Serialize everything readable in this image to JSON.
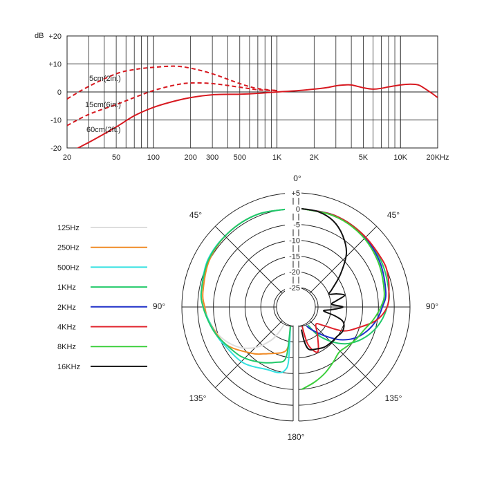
{
  "chart_data": [
    {
      "type": "line",
      "ylabel": "dB",
      "xscale": "log",
      "xlim": [
        20,
        20000
      ],
      "ylim": [
        -20,
        20
      ],
      "grid": true,
      "x_tick_labels": [
        "20",
        "50",
        "100",
        "200",
        "300",
        "500",
        "1K",
        "2K",
        "5K",
        "10K",
        "20KHz"
      ],
      "x_tick_values": [
        20,
        50,
        100,
        200,
        300,
        500,
        1000,
        2000,
        5000,
        10000,
        20000
      ],
      "y_tick_labels": [
        "+20",
        "+10",
        "0",
        "-10",
        "-20"
      ],
      "y_tick_values": [
        20,
        10,
        0,
        -10,
        -20
      ],
      "series": [
        {
          "name": "60cm(2ft.)",
          "style": "solid",
          "color": "#d71920",
          "x": [
            20,
            30,
            50,
            70,
            100,
            150,
            200,
            300,
            500,
            700,
            1000,
            1500,
            2000,
            2500,
            3000,
            3500,
            4000,
            5000,
            6000,
            7000,
            8000,
            10000,
            12000,
            14000,
            16000,
            18000,
            20000
          ],
          "y": [
            -22,
            -18,
            -12.5,
            -8.5,
            -5.5,
            -3.2,
            -2,
            -1,
            -0.8,
            -0.5,
            0,
            0.5,
            1,
            1.5,
            2.2,
            2.5,
            2.5,
            1.5,
            1,
            1.3,
            1.8,
            2.5,
            2.8,
            2.5,
            1,
            -0.5,
            -2
          ]
        },
        {
          "name": "15cm(6in.)",
          "style": "dashed",
          "color": "#d71920",
          "x": [
            20,
            30,
            50,
            70,
            100,
            150,
            200,
            300,
            500,
            700,
            1000
          ],
          "y": [
            -12,
            -8,
            -4.5,
            -2,
            0.5,
            2.5,
            3.2,
            3,
            1.7,
            0.8,
            0.5
          ]
        },
        {
          "name": "5cm(2in.)",
          "style": "dashed",
          "color": "#d71920",
          "x": [
            20,
            30,
            50,
            70,
            100,
            150,
            200,
            300,
            500,
            700,
            1000
          ],
          "y": [
            -2.5,
            2,
            6.5,
            8,
            8.8,
            9.2,
            8.5,
            6.5,
            3,
            1.2,
            0.5
          ]
        }
      ]
    },
    {
      "type": "polar",
      "r_tick_labels": [
        "+5",
        "0",
        "-5",
        "-10",
        "-15",
        "-20",
        "-25"
      ],
      "r_tick_values": [
        5,
        0,
        -5,
        -10,
        -15,
        -20,
        -25
      ],
      "angle_labels": [
        "0°",
        "45°",
        "90°",
        "135°",
        "180°",
        "45°",
        "90°",
        "135°"
      ],
      "rlim": [
        -25,
        5
      ],
      "legend_position": "left",
      "series": [
        {
          "name": "125Hz",
          "color": "#dddddd",
          "side": "left",
          "angles": [
            0,
            20,
            40,
            60,
            80,
            90,
            100,
            110,
            120,
            130,
            140,
            150,
            155,
            160
          ],
          "values": [
            0,
            0,
            -0.5,
            -1.5,
            -3,
            -4,
            -5,
            -6.5,
            -8.5,
            -11,
            -14.5,
            -19,
            -22,
            -25
          ]
        },
        {
          "name": "250Hz",
          "color": "#f08a24",
          "side": "left",
          "angles": [
            0,
            20,
            40,
            60,
            80,
            90,
            100,
            120,
            140,
            150,
            160,
            165,
            170,
            175,
            178,
            180
          ],
          "values": [
            0,
            0,
            -0.5,
            -1.5,
            -3,
            -4,
            -5,
            -7.5,
            -12,
            -14,
            -15.5,
            -16,
            -16.5,
            -17.5,
            -20,
            -25
          ]
        },
        {
          "name": "500Hz",
          "color": "#33e0e0",
          "side": "left",
          "angles": [
            0,
            20,
            40,
            60,
            80,
            90,
            100,
            110,
            120,
            140,
            160,
            170,
            175,
            178,
            180
          ],
          "values": [
            0,
            0,
            -0.5,
            -1,
            -2.5,
            -3.5,
            -5,
            -6,
            -7,
            -8,
            -10,
            -10,
            -11,
            -14,
            -25
          ]
        },
        {
          "name": "1KHz",
          "color": "#22c96a",
          "side": "left",
          "angles": [
            0,
            20,
            40,
            60,
            80,
            90,
            100,
            110,
            120,
            135,
            150,
            165,
            175,
            180
          ],
          "values": [
            0,
            0,
            -0.5,
            -1.2,
            -2.5,
            -3.5,
            -4.8,
            -6,
            -7.5,
            -9,
            -11,
            -13,
            -15,
            -25
          ]
        },
        {
          "name": "1KHz",
          "color": "#22c96a",
          "side": "right",
          "angles": [
            0,
            20,
            40,
            60,
            80,
            90,
            100,
            110,
            120,
            130,
            140,
            150,
            160
          ],
          "values": [
            0,
            -0.3,
            -1,
            -2,
            -3,
            -4,
            -5.5,
            -7.5,
            -10,
            -13,
            -17,
            -21,
            -25
          ]
        },
        {
          "name": "2KHz",
          "color": "#1f30c8",
          "side": "right",
          "angles": [
            0,
            20,
            40,
            60,
            80,
            90,
            100,
            110,
            120,
            130,
            140,
            150,
            160,
            165
          ],
          "values": [
            0,
            -0.3,
            -1.2,
            -2.5,
            -4,
            -5.5,
            -7,
            -9,
            -11.5,
            -15,
            -19,
            -22,
            -24,
            -25
          ]
        },
        {
          "name": "4KHz",
          "color": "#e0202a",
          "side": "right",
          "angles": [
            0,
            20,
            40,
            60,
            70,
            80,
            90,
            100,
            110,
            120,
            130,
            140,
            150,
            160,
            170,
            178
          ],
          "values": [
            0,
            -0.3,
            -1,
            -1.5,
            -2,
            -3,
            -4,
            -7,
            -12,
            -16,
            -22,
            -24,
            -21,
            -16,
            -19,
            -25
          ]
        },
        {
          "name": "8KHz",
          "color": "#3ccf3c",
          "side": "right",
          "angles": [
            0,
            20,
            40,
            60,
            80,
            90,
            100,
            110,
            120,
            130,
            140,
            150,
            160,
            170,
            180
          ],
          "values": [
            0,
            -0.5,
            -1.5,
            -3,
            -4.5,
            -6,
            -8,
            -10,
            -11,
            -12,
            -12.5,
            -11,
            -9,
            -7,
            -5
          ]
        },
        {
          "name": "16KHz",
          "color": "#111111",
          "side": "right",
          "angles": [
            0,
            10,
            20,
            30,
            40,
            50,
            60,
            65,
            70,
            75,
            80,
            85,
            90,
            95,
            100,
            105,
            110,
            120,
            130,
            140,
            150,
            160,
            170,
            175,
            180
          ],
          "values": [
            0,
            -0.5,
            -2,
            -5,
            -9,
            -15,
            -20,
            -21.5,
            -19,
            -17,
            -20,
            -21.5,
            -18,
            -21.5,
            -24,
            -20,
            -17,
            -16,
            -16.5,
            -16.5,
            -16.5,
            -17,
            -17.5,
            -20,
            -24
          ]
        }
      ]
    }
  ],
  "top_chart": {
    "y_axis_unit": "dB",
    "annotations": [
      "5cm(2in.)",
      "15cm(6in.)",
      "60cm(2ft.)"
    ]
  },
  "polar_chart": {
    "legend": [
      {
        "label": "125Hz",
        "color": "#dddddd"
      },
      {
        "label": "250Hz",
        "color": "#f08a24"
      },
      {
        "label": "500Hz",
        "color": "#33e0e0"
      },
      {
        "label": "1KHz",
        "color": "#22c96a"
      },
      {
        "label": "2KHz",
        "color": "#1f30c8"
      },
      {
        "label": "4KHz",
        "color": "#e0202a"
      },
      {
        "label": "8KHz",
        "color": "#3ccf3c"
      },
      {
        "label": "16KHz",
        "color": "#111111"
      }
    ]
  }
}
